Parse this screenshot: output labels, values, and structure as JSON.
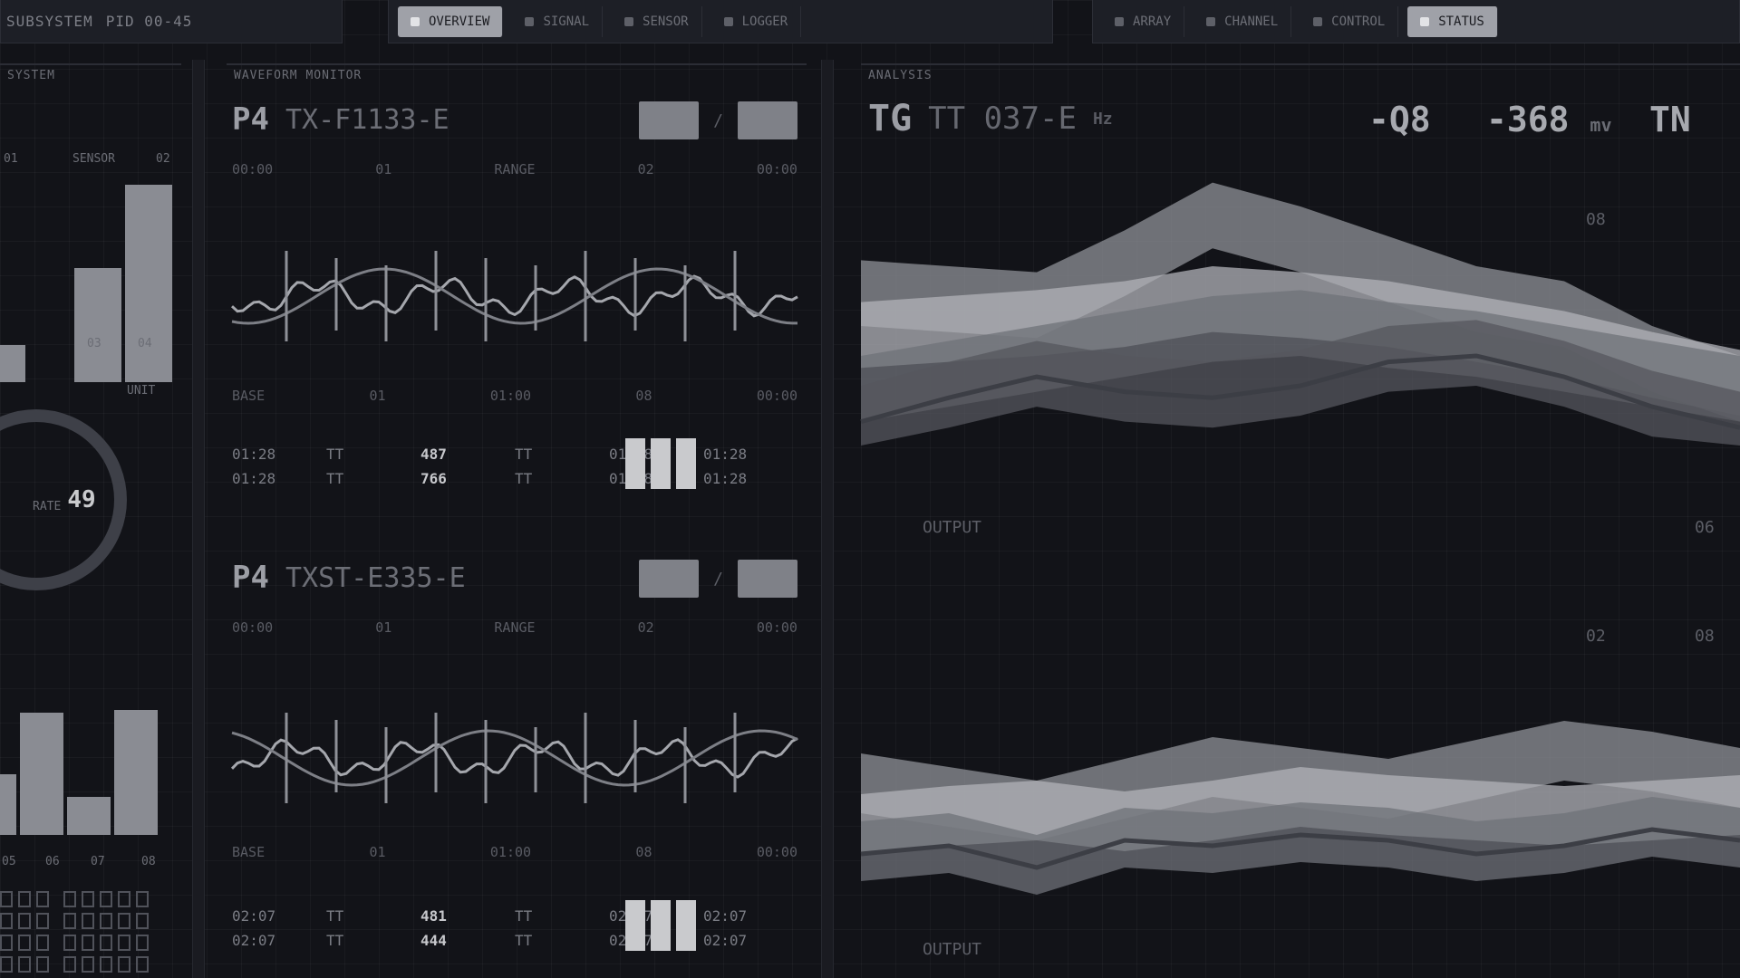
{
  "topbar": {
    "left_label_1": "SUBSYSTEM",
    "left_label_2": "PID 00-45",
    "tabs_group_1": [
      {
        "label": "OVERVIEW",
        "active": true
      },
      {
        "label": "SIGNAL",
        "active": false
      },
      {
        "label": "SENSOR",
        "active": false
      },
      {
        "label": "LOGGER",
        "active": false
      }
    ],
    "tabs_group_2": [
      {
        "label": "ARRAY",
        "active": false
      },
      {
        "label": "CHANNEL",
        "active": false
      },
      {
        "label": "CONTROL",
        "active": false
      },
      {
        "label": "STATUS",
        "active": true
      }
    ]
  },
  "left_panel": {
    "header": "SYSTEM",
    "top_labels": [
      "01",
      "SENSOR",
      "02"
    ],
    "bar_labels_top": [
      "03",
      "04"
    ],
    "ring_value": "49",
    "ring_label": "RATE",
    "bar_labels_bottom": [
      "05",
      "06",
      "07",
      "08"
    ],
    "side_label": "UNIT"
  },
  "mid_panel": {
    "header": "WAVEFORM MONITOR",
    "sections": [
      {
        "code": "P4",
        "id": "TX-F1133-E",
        "meta_top": [
          "00:00",
          "01",
          "RANGE",
          "02",
          "00:00"
        ],
        "meta_bottom": [
          "BASE",
          "01",
          "01:00",
          "08",
          "00:00"
        ],
        "stats_row_1": [
          "01:28",
          "TT",
          "487",
          "TT",
          "01:28",
          "01:28"
        ],
        "stats_row_2": [
          "01:28",
          "TT",
          "766",
          "TT",
          "01:28",
          "01:28"
        ]
      },
      {
        "code": "P4",
        "id": "TXST-E335-E",
        "meta_top": [
          "00:00",
          "01",
          "RANGE",
          "02",
          "00:00"
        ],
        "meta_bottom": [
          "BASE",
          "01",
          "01:00",
          "08",
          "00:00"
        ],
        "stats_row_1": [
          "02:07",
          "TT",
          "481",
          "TT",
          "02:07",
          "02:07"
        ],
        "stats_row_2": [
          "02:07",
          "TT",
          "444",
          "TT",
          "02:07",
          "02:07"
        ]
      }
    ]
  },
  "right_panel": {
    "header": "ANALYSIS",
    "code": "TG",
    "id": "TT 037-E",
    "unit": "Hz",
    "readout_1": "-Q8",
    "readout_2": "-368",
    "readout_2_unit": "mv",
    "readout_3": "TN",
    "label_mid": "OUTPUT",
    "label_bottom": "OUTPUT",
    "tick_labels": [
      "08",
      "02",
      "06",
      "08"
    ]
  },
  "chart_data": [
    {
      "type": "area",
      "title": "",
      "x": [
        0,
        1,
        2,
        3,
        4,
        5,
        6,
        7,
        8,
        9,
        10
      ],
      "series": [
        {
          "values": [
            62,
            60,
            58,
            72,
            88,
            80,
            70,
            60,
            55,
            40,
            30
          ]
        },
        {
          "values": [
            48,
            50,
            52,
            55,
            60,
            58,
            55,
            50,
            45,
            38,
            32
          ]
        },
        {
          "values": [
            30,
            35,
            40,
            45,
            50,
            52,
            48,
            45,
            40,
            35,
            30
          ]
        },
        {
          "values": [
            20,
            28,
            35,
            30,
            28,
            32,
            40,
            42,
            35,
            25,
            18
          ]
        }
      ],
      "ylim": [
        0,
        100
      ]
    },
    {
      "type": "area",
      "title": "",
      "x": [
        0,
        1,
        2,
        3,
        4,
        5,
        6,
        7,
        8,
        9,
        10
      ],
      "series": [
        {
          "values": [
            60,
            55,
            50,
            58,
            66,
            62,
            58,
            65,
            72,
            68,
            62
          ]
        },
        {
          "values": [
            45,
            48,
            50,
            46,
            50,
            55,
            52,
            50,
            48,
            50,
            52
          ]
        },
        {
          "values": [
            35,
            38,
            30,
            40,
            38,
            42,
            40,
            35,
            38,
            44,
            40
          ]
        }
      ],
      "ylim": [
        0,
        100
      ]
    }
  ]
}
